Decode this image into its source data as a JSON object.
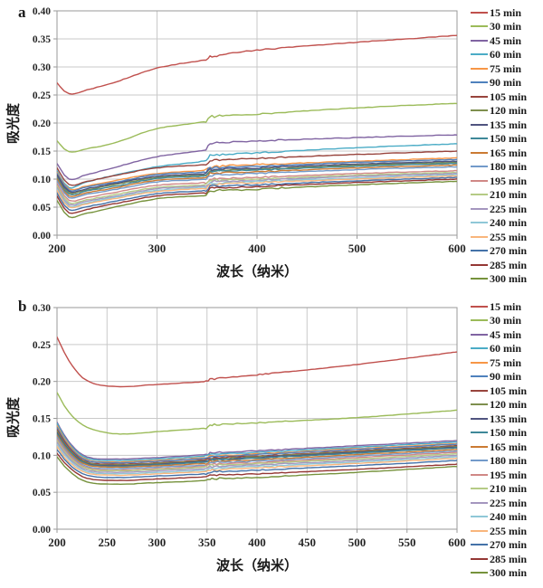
{
  "style": {
    "grid_color": "#c9c9c9",
    "axis_color": "#9a9a9a",
    "text_color": "#262626",
    "background": "#ffffff"
  },
  "chart_data": [
    {
      "type": "line",
      "panel_label": "a",
      "ylabel": "吸光度",
      "xlabel": "波长（纳米）",
      "xlim": [
        200,
        600
      ],
      "ylim": [
        0.0,
        0.4
      ],
      "xtick_step": 100,
      "ytick_step": 0.05,
      "ytick_decimals": 2,
      "grid": true,
      "legend_position": "right",
      "x": [
        200,
        212,
        230,
        260,
        300,
        349,
        353,
        400,
        500,
        600
      ],
      "series": [
        {
          "name": "15 min",
          "color": "#C0504D",
          "values": [
            0.272,
            0.252,
            0.259,
            0.274,
            0.298,
            0.313,
            0.318,
            0.33,
            0.344,
            0.356
          ]
        },
        {
          "name": "30 min",
          "color": "#9BBB59",
          "values": [
            0.168,
            0.149,
            0.154,
            0.166,
            0.19,
            0.203,
            0.211,
            0.216,
            0.227,
            0.235
          ]
        },
        {
          "name": "45 min",
          "color": "#8064A2",
          "values": [
            0.128,
            0.1,
            0.108,
            0.122,
            0.14,
            0.152,
            0.163,
            0.168,
            0.174,
            0.179
          ]
        },
        {
          "name": "60 min",
          "color": "#4BACC6",
          "values": [
            0.115,
            0.085,
            0.095,
            0.108,
            0.122,
            0.133,
            0.142,
            0.147,
            0.156,
            0.163
          ]
        },
        {
          "name": "75 min",
          "color": "#F79646",
          "values": [
            0.112,
            0.082,
            0.088,
            0.098,
            0.11,
            0.116,
            0.122,
            0.126,
            0.132,
            0.138
          ]
        },
        {
          "name": "90 min",
          "color": "#4F81BD",
          "values": [
            0.11,
            0.08,
            0.086,
            0.095,
            0.108,
            0.113,
            0.12,
            0.123,
            0.13,
            0.135
          ]
        },
        {
          "name": "105 min",
          "color": "#98443D",
          "values": [
            0.12,
            0.09,
            0.096,
            0.107,
            0.12,
            0.126,
            0.133,
            0.137,
            0.144,
            0.15
          ]
        },
        {
          "name": "120 min",
          "color": "#7E8F4E",
          "values": [
            0.105,
            0.076,
            0.081,
            0.091,
            0.103,
            0.108,
            0.115,
            0.118,
            0.125,
            0.13
          ]
        },
        {
          "name": "135 min",
          "color": "#50547F",
          "values": [
            0.108,
            0.078,
            0.083,
            0.093,
            0.105,
            0.11,
            0.117,
            0.12,
            0.127,
            0.132
          ]
        },
        {
          "name": "150 min",
          "color": "#3E8899",
          "values": [
            0.102,
            0.073,
            0.079,
            0.088,
            0.101,
            0.106,
            0.113,
            0.116,
            0.123,
            0.128
          ]
        },
        {
          "name": "165 min",
          "color": "#CB7A33",
          "values": [
            0.1,
            0.07,
            0.076,
            0.085,
            0.098,
            0.103,
            0.11,
            0.113,
            0.12,
            0.125
          ]
        },
        {
          "name": "180 min",
          "color": "#729ACA",
          "values": [
            0.097,
            0.067,
            0.073,
            0.082,
            0.095,
            0.1,
            0.107,
            0.11,
            0.117,
            0.122
          ]
        },
        {
          "name": "195 min",
          "color": "#D08886",
          "values": [
            0.092,
            0.062,
            0.067,
            0.077,
            0.089,
            0.094,
            0.1,
            0.103,
            0.11,
            0.115
          ]
        },
        {
          "name": "210 min",
          "color": "#B5CB85",
          "values": [
            0.088,
            0.058,
            0.063,
            0.073,
            0.085,
            0.09,
            0.097,
            0.1,
            0.107,
            0.112
          ]
        },
        {
          "name": "225 min",
          "color": "#A496BE",
          "values": [
            0.085,
            0.055,
            0.061,
            0.07,
            0.083,
            0.088,
            0.095,
            0.098,
            0.105,
            0.11
          ]
        },
        {
          "name": "240 min",
          "color": "#8FC7D7",
          "values": [
            0.082,
            0.052,
            0.058,
            0.068,
            0.08,
            0.086,
            0.092,
            0.096,
            0.102,
            0.108
          ]
        },
        {
          "name": "255 min",
          "color": "#F9B57C",
          "values": [
            0.08,
            0.05,
            0.056,
            0.066,
            0.078,
            0.084,
            0.09,
            0.094,
            0.1,
            0.106
          ]
        },
        {
          "name": "270 min",
          "color": "#4472A8",
          "values": [
            0.075,
            0.045,
            0.051,
            0.061,
            0.074,
            0.08,
            0.087,
            0.09,
            0.097,
            0.103
          ]
        },
        {
          "name": "285 min",
          "color": "#943734",
          "values": [
            0.07,
            0.04,
            0.046,
            0.057,
            0.07,
            0.076,
            0.083,
            0.087,
            0.094,
            0.1
          ]
        },
        {
          "name": "300 min",
          "color": "#76923C",
          "values": [
            0.062,
            0.033,
            0.039,
            0.051,
            0.065,
            0.071,
            0.078,
            0.082,
            0.09,
            0.096
          ]
        }
      ]
    },
    {
      "type": "line",
      "panel_label": "b",
      "ylabel": "吸光度",
      "xlabel": "波长（纳米）",
      "xlim": [
        200,
        600
      ],
      "ylim": [
        0.0,
        0.3
      ],
      "xtick_step": 50,
      "ytick_step": 0.05,
      "ytick_decimals": 2,
      "grid": true,
      "legend_position": "right",
      "x": [
        200,
        212,
        230,
        260,
        300,
        349,
        353,
        400,
        500,
        600
      ],
      "series": [
        {
          "name": "15 min",
          "color": "#C0504D",
          "values": [
            0.26,
            0.228,
            0.201,
            0.193,
            0.196,
            0.2,
            0.203,
            0.209,
            0.223,
            0.24
          ]
        },
        {
          "name": "30 min",
          "color": "#9BBB59",
          "values": [
            0.185,
            0.158,
            0.138,
            0.129,
            0.132,
            0.137,
            0.141,
            0.144,
            0.151,
            0.161
          ]
        },
        {
          "name": "45 min",
          "color": "#8064A2",
          "values": [
            0.145,
            0.118,
            0.098,
            0.095,
            0.097,
            0.101,
            0.103,
            0.106,
            0.113,
            0.12
          ]
        },
        {
          "name": "60 min",
          "color": "#4BACC6",
          "values": [
            0.143,
            0.116,
            0.096,
            0.093,
            0.095,
            0.099,
            0.101,
            0.104,
            0.111,
            0.118
          ]
        },
        {
          "name": "75 min",
          "color": "#F79646",
          "values": [
            0.14,
            0.114,
            0.094,
            0.091,
            0.093,
            0.097,
            0.099,
            0.102,
            0.109,
            0.116
          ]
        },
        {
          "name": "90 min",
          "color": "#4F81BD",
          "values": [
            0.138,
            0.112,
            0.093,
            0.09,
            0.092,
            0.096,
            0.098,
            0.101,
            0.108,
            0.115
          ]
        },
        {
          "name": "105 min",
          "color": "#98443D",
          "values": [
            0.135,
            0.11,
            0.091,
            0.088,
            0.09,
            0.094,
            0.096,
            0.099,
            0.106,
            0.113
          ]
        },
        {
          "name": "120 min",
          "color": "#7E8F4E",
          "values": [
            0.133,
            0.108,
            0.09,
            0.087,
            0.089,
            0.093,
            0.095,
            0.098,
            0.105,
            0.112
          ]
        },
        {
          "name": "135 min",
          "color": "#50547F",
          "values": [
            0.131,
            0.107,
            0.089,
            0.086,
            0.088,
            0.092,
            0.094,
            0.097,
            0.104,
            0.111
          ]
        },
        {
          "name": "150 min",
          "color": "#3E8899",
          "values": [
            0.129,
            0.106,
            0.088,
            0.085,
            0.087,
            0.091,
            0.093,
            0.096,
            0.103,
            0.11
          ]
        },
        {
          "name": "165 min",
          "color": "#CB7A33",
          "values": [
            0.127,
            0.104,
            0.087,
            0.084,
            0.086,
            0.089,
            0.092,
            0.094,
            0.101,
            0.108
          ]
        },
        {
          "name": "180 min",
          "color": "#729ACA",
          "values": [
            0.125,
            0.102,
            0.085,
            0.082,
            0.084,
            0.087,
            0.09,
            0.092,
            0.099,
            0.106
          ]
        },
        {
          "name": "195 min",
          "color": "#D08886",
          "values": [
            0.122,
            0.1,
            0.083,
            0.08,
            0.082,
            0.085,
            0.088,
            0.09,
            0.097,
            0.104
          ]
        },
        {
          "name": "210 min",
          "color": "#B5CB85",
          "values": [
            0.12,
            0.098,
            0.082,
            0.079,
            0.081,
            0.084,
            0.086,
            0.089,
            0.095,
            0.102
          ]
        },
        {
          "name": "225 min",
          "color": "#A496BE",
          "values": [
            0.118,
            0.096,
            0.08,
            0.077,
            0.079,
            0.082,
            0.084,
            0.087,
            0.093,
            0.1
          ]
        },
        {
          "name": "240 min",
          "color": "#8FC7D7",
          "values": [
            0.115,
            0.094,
            0.078,
            0.075,
            0.077,
            0.08,
            0.082,
            0.085,
            0.091,
            0.098
          ]
        },
        {
          "name": "255 min",
          "color": "#F9B57C",
          "values": [
            0.112,
            0.091,
            0.076,
            0.073,
            0.075,
            0.078,
            0.08,
            0.083,
            0.089,
            0.096
          ]
        },
        {
          "name": "270 min",
          "color": "#4472A8",
          "values": [
            0.108,
            0.088,
            0.073,
            0.07,
            0.072,
            0.075,
            0.077,
            0.08,
            0.086,
            0.093
          ]
        },
        {
          "name": "285 min",
          "color": "#943734",
          "values": [
            0.103,
            0.084,
            0.069,
            0.066,
            0.068,
            0.071,
            0.073,
            0.075,
            0.081,
            0.088
          ]
        },
        {
          "name": "300 min",
          "color": "#76923C",
          "values": [
            0.098,
            0.079,
            0.064,
            0.061,
            0.063,
            0.066,
            0.068,
            0.07,
            0.077,
            0.085
          ]
        }
      ]
    }
  ]
}
